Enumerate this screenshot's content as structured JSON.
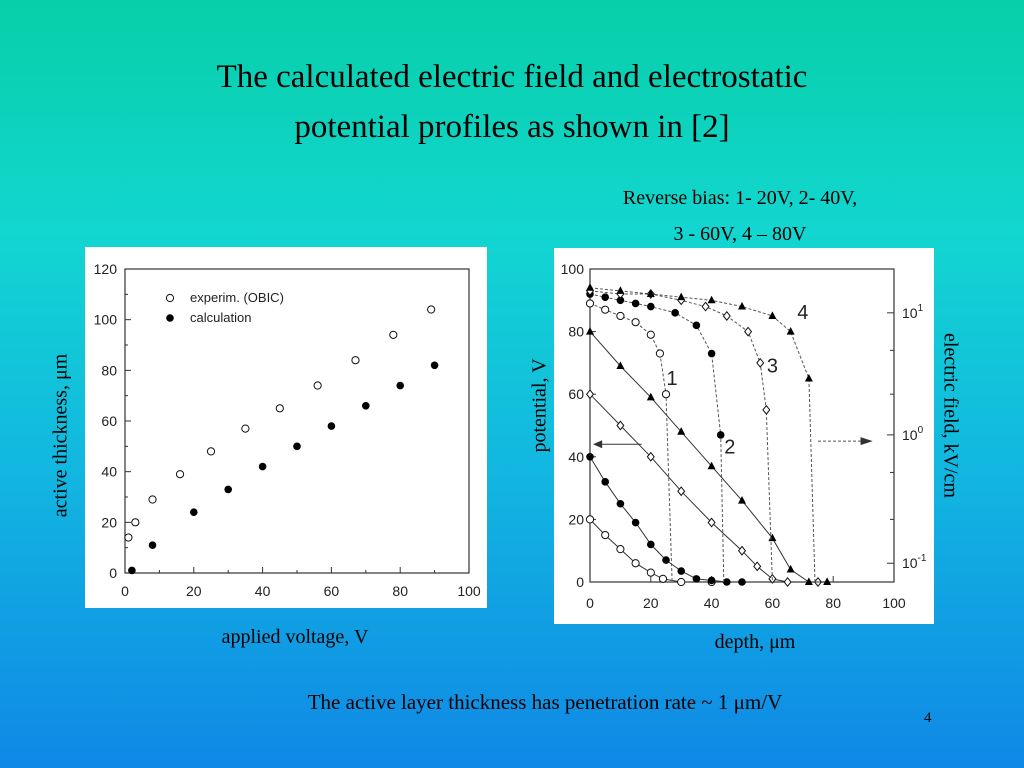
{
  "slide": {
    "title_line1": "The calculated electric field and electrostatic",
    "title_line2": "potential profiles as shown in [2]",
    "bias_line1": "Reverse bias: 1- 20V, 2- 40V,",
    "bias_line2": "3 - 60V, 4 – 80V",
    "footer": "The active layer thickness has penetration rate ~ 1 μm/V",
    "page_number": "4"
  },
  "chart_data": [
    {
      "type": "scatter",
      "xlabel": "applied voltage, V",
      "ylabel": "active thickness, μm",
      "xlim": [
        0,
        100
      ],
      "ylim": [
        0,
        120
      ],
      "xticks": [
        "0",
        "20",
        "40",
        "60",
        "80",
        "100"
      ],
      "yticks": [
        "0",
        "20",
        "40",
        "60",
        "80",
        "100",
        "120"
      ],
      "legend_position": "top-left",
      "series": [
        {
          "name": "experim. (OBIC)",
          "marker": "open-circle",
          "points": [
            [
              1,
              14
            ],
            [
              3,
              20
            ],
            [
              8,
              29
            ],
            [
              16,
              39
            ],
            [
              25,
              48
            ],
            [
              35,
              57
            ],
            [
              45,
              65
            ],
            [
              56,
              74
            ],
            [
              67,
              84
            ],
            [
              78,
              94
            ],
            [
              89,
              104
            ]
          ]
        },
        {
          "name": "calculation",
          "marker": "filled-circle",
          "points": [
            [
              2,
              1
            ],
            [
              8,
              11
            ],
            [
              20,
              24
            ],
            [
              30,
              33
            ],
            [
              40,
              42
            ],
            [
              50,
              50
            ],
            [
              60,
              58
            ],
            [
              70,
              66
            ],
            [
              80,
              74
            ],
            [
              90,
              82
            ]
          ]
        }
      ]
    },
    {
      "type": "line",
      "xlabel": "depth, μm",
      "ylabel": "potential, V",
      "y2label": "electric field, kV/cm",
      "xlim": [
        0,
        100
      ],
      "ylim": [
        0,
        100
      ],
      "xticks": [
        "0",
        "20",
        "40",
        "60",
        "80",
        "100"
      ],
      "yticks": [
        "0",
        "20",
        "40",
        "60",
        "80",
        "100"
      ],
      "y2_scale": "log",
      "y2ticks": [
        {
          "base": "10",
          "exp": "1",
          "pos": 86
        },
        {
          "base": "10",
          "exp": "0",
          "pos": 47
        },
        {
          "base": "10",
          "exp": "-1",
          "pos": 6
        }
      ],
      "curve_labels": [
        "1",
        "2",
        "3",
        "4"
      ],
      "potential_series": [
        {
          "name": "1",
          "marker": "open-circle",
          "points": [
            [
              0,
              20
            ],
            [
              5,
              15
            ],
            [
              10,
              10.5
            ],
            [
              15,
              6
            ],
            [
              20,
              3
            ],
            [
              24,
              1
            ],
            [
              30,
              0
            ],
            [
              40,
              0
            ]
          ]
        },
        {
          "name": "2",
          "marker": "filled-circle",
          "points": [
            [
              0,
              40
            ],
            [
              5,
              32
            ],
            [
              10,
              25
            ],
            [
              15,
              19
            ],
            [
              20,
              12
            ],
            [
              25,
              7
            ],
            [
              30,
              3.5
            ],
            [
              35,
              1
            ],
            [
              40,
              0.5
            ],
            [
              45,
              0
            ],
            [
              50,
              0
            ]
          ]
        },
        {
          "name": "3",
          "marker": "open-diamond",
          "points": [
            [
              0,
              60
            ],
            [
              10,
              50
            ],
            [
              20,
              40
            ],
            [
              30,
              29
            ],
            [
              40,
              19
            ],
            [
              50,
              10
            ],
            [
              55,
              5
            ],
            [
              60,
              1
            ],
            [
              65,
              0
            ],
            [
              75,
              0
            ]
          ]
        },
        {
          "name": "4",
          "marker": "filled-triangle",
          "points": [
            [
              0,
              80
            ],
            [
              10,
              69
            ],
            [
              20,
              59
            ],
            [
              30,
              48
            ],
            [
              40,
              37
            ],
            [
              50,
              26
            ],
            [
              60,
              14
            ],
            [
              66,
              4
            ],
            [
              72,
              0
            ],
            [
              78,
              0
            ]
          ]
        }
      ],
      "field_series": [
        {
          "name": "1",
          "marker": "open-circle",
          "points": [
            [
              0,
              89
            ],
            [
              5,
              87
            ],
            [
              10,
              85
            ],
            [
              15,
              83
            ],
            [
              20,
              79
            ],
            [
              23,
              73
            ],
            [
              25,
              60
            ],
            [
              27,
              0
            ]
          ]
        },
        {
          "name": "2",
          "marker": "filled-circle",
          "points": [
            [
              0,
              92
            ],
            [
              5,
              91
            ],
            [
              10,
              90
            ],
            [
              15,
              89
            ],
            [
              20,
              88
            ],
            [
              28,
              86
            ],
            [
              35,
              82
            ],
            [
              40,
              73
            ],
            [
              43,
              47
            ],
            [
              44,
              0
            ]
          ]
        },
        {
          "name": "3",
          "marker": "open-diamond",
          "points": [
            [
              0,
              93
            ],
            [
              10,
              92
            ],
            [
              20,
              92
            ],
            [
              30,
              90
            ],
            [
              38,
              88
            ],
            [
              45,
              85
            ],
            [
              52,
              80
            ],
            [
              56,
              70
            ],
            [
              58,
              55
            ],
            [
              60,
              0
            ]
          ]
        },
        {
          "name": "4",
          "marker": "filled-triangle",
          "points": [
            [
              0,
              94
            ],
            [
              10,
              93
            ],
            [
              20,
              92
            ],
            [
              30,
              91
            ],
            [
              40,
              90
            ],
            [
              50,
              88
            ],
            [
              60,
              85
            ],
            [
              66,
              80
            ],
            [
              72,
              65
            ],
            [
              74,
              0
            ]
          ]
        }
      ]
    }
  ]
}
